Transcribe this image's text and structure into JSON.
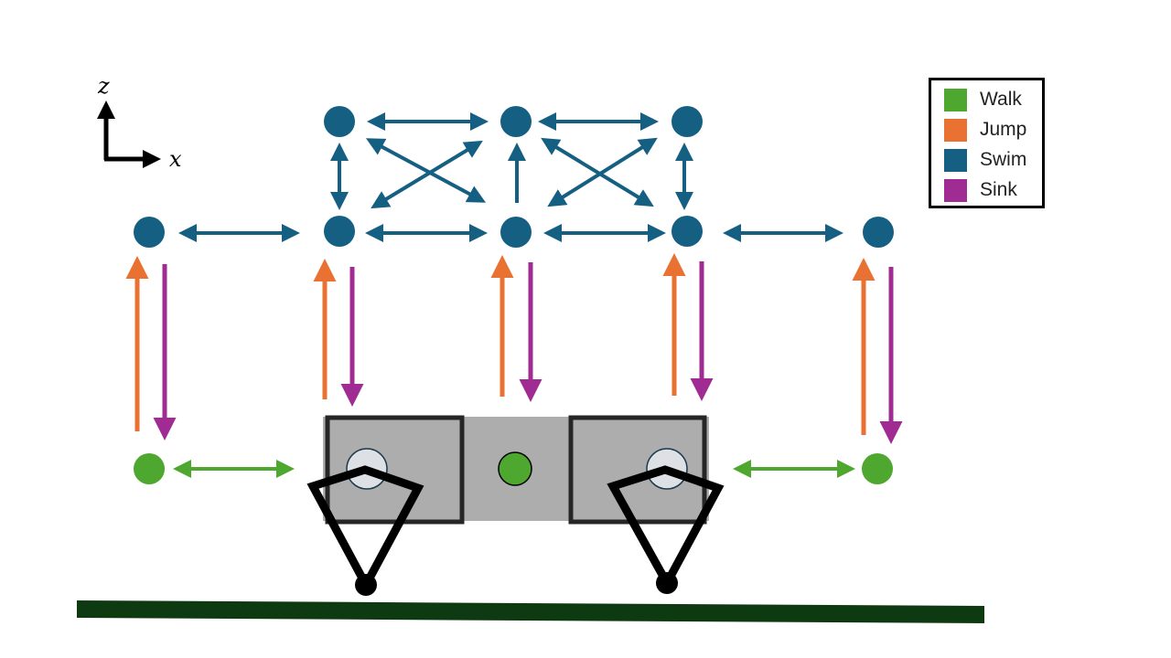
{
  "axes": {
    "z_label": "z",
    "x_label": "x"
  },
  "legend": {
    "items": [
      {
        "label": "Walk",
        "color": "#4ea72e"
      },
      {
        "label": "Jump",
        "color": "#e97132"
      },
      {
        "label": "Swim",
        "color": "#156082"
      },
      {
        "label": "Sink",
        "color": "#a02b93"
      }
    ]
  },
  "colors": {
    "walk": "#4ea72e",
    "jump": "#e97132",
    "swim": "#156082",
    "sink": "#a02b93",
    "ground": "#0e3a12",
    "robot_body": "#adadad",
    "robot_outline": "#262626"
  }
}
